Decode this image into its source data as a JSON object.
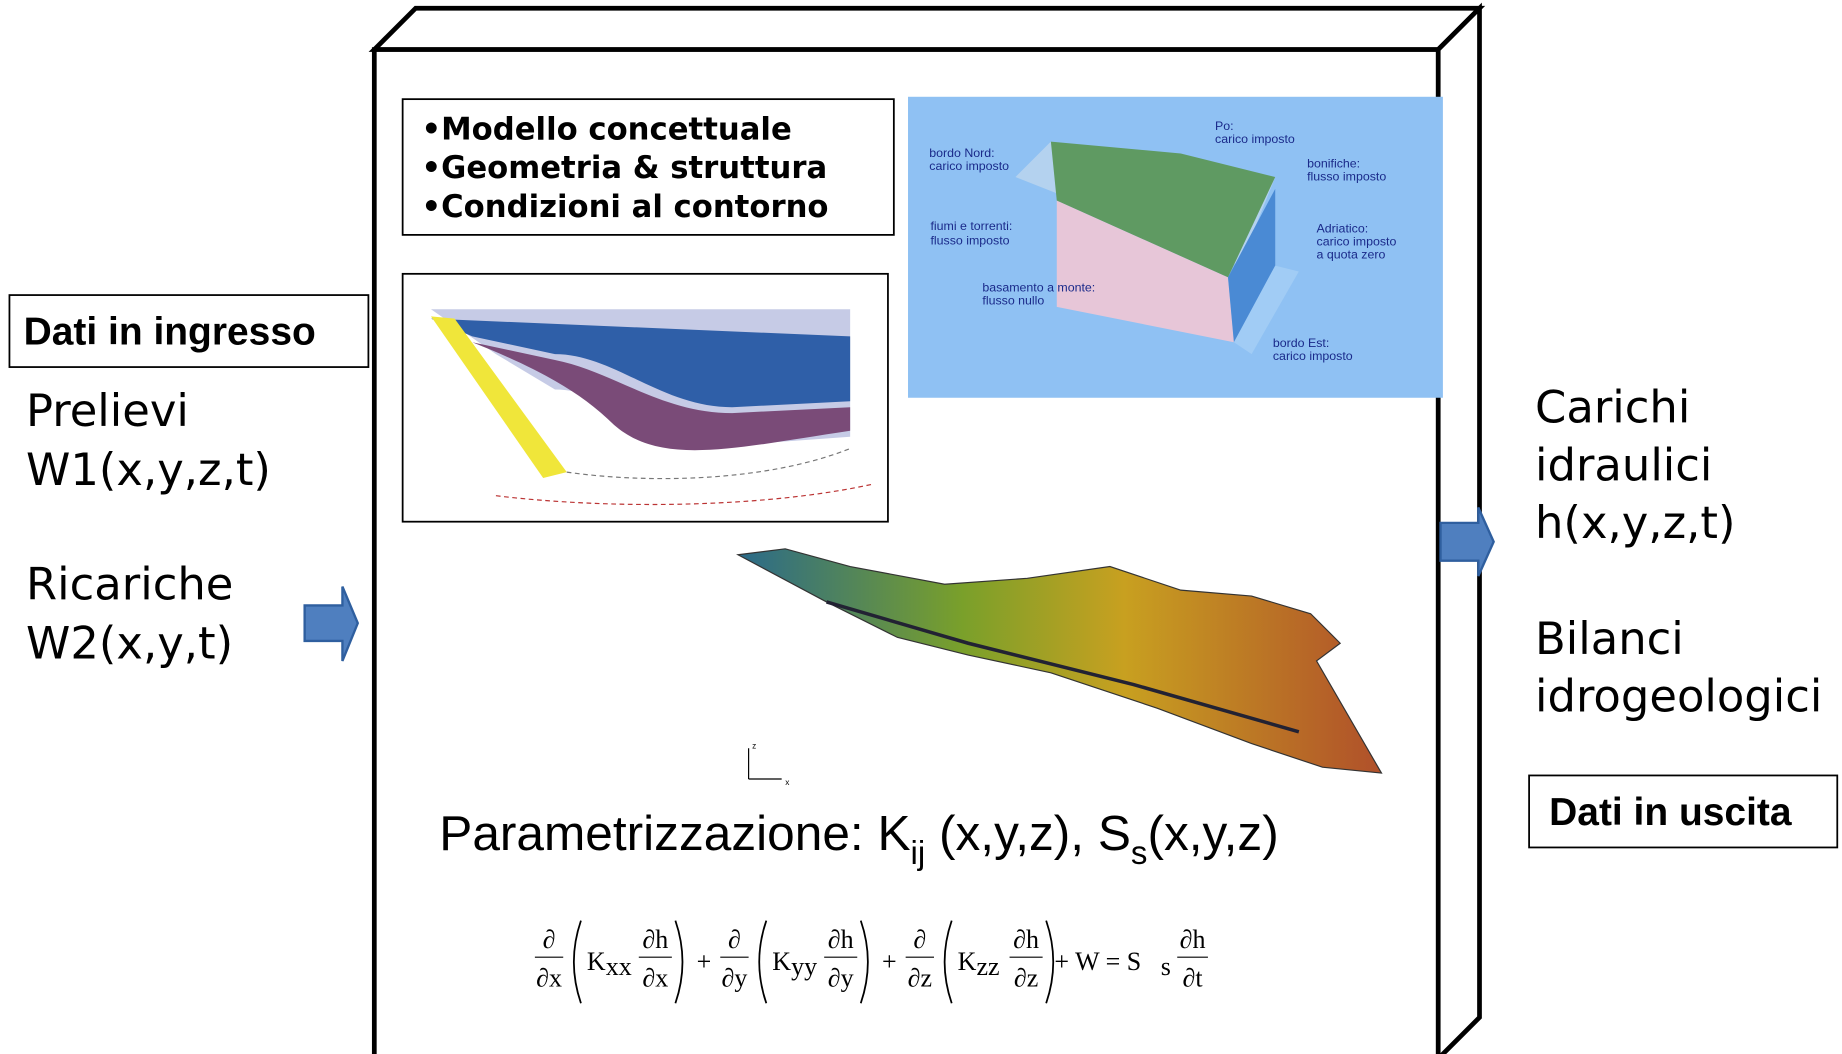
{
  "input": {
    "title": "Dati in ingresso",
    "items": [
      {
        "name": "Prelievi",
        "formula": "W1(x,y,z,t)"
      },
      {
        "name": "Ricariche",
        "formula": "W2(x,y,t)"
      }
    ]
  },
  "output": {
    "title": "Dati in uscita",
    "items": [
      {
        "lines": [
          "Carichi",
          "idraulici",
          "h(x,y,z,t)"
        ]
      },
      {
        "lines": [
          "Bilanci",
          "idrogeologici"
        ]
      }
    ]
  },
  "model": {
    "bullets": [
      "•Modello concettuale",
      "•Geometria & struttura",
      "•Condizioni al contorno"
    ],
    "block_labels": [
      {
        "lines": [
          "Po:",
          "carico imposto"
        ]
      },
      {
        "lines": [
          "bordo Nord:",
          "carico imposto"
        ]
      },
      {
        "lines": [
          "bonifiche:",
          "flusso imposto"
        ]
      },
      {
        "lines": [
          "fiumi e torrenti:",
          "flusso imposto"
        ]
      },
      {
        "lines": [
          "Adriatico:",
          "carico imposto",
          "a quota zero"
        ]
      },
      {
        "lines": [
          "basamento a monte:",
          "flusso nullo"
        ]
      },
      {
        "lines": [
          "bordo Est:",
          "carico imposto"
        ]
      }
    ],
    "axes": {
      "x": "x",
      "z": "z"
    },
    "parametrization": {
      "text": "Parametrizzazione: K",
      "k_sub": "ij",
      "middle": " (x,y,z), S",
      "s_sub": "s",
      "end": "(x,y,z)"
    },
    "equation": {
      "terms": [
        {
          "op_num": "∂",
          "op_den": "∂x",
          "coef": "K",
          "sub": "xx",
          "num": "∂h",
          "den": "∂x"
        },
        {
          "op_num": "∂",
          "op_den": "∂y",
          "coef": "K",
          "sub": "yy",
          "num": "∂h",
          "den": "∂y"
        },
        {
          "op_num": "∂",
          "op_den": "∂z",
          "coef": "K",
          "sub": "zz",
          "num": "∂h",
          "den": "∂z"
        }
      ],
      "plus": "+",
      "rhs": "+ W = S",
      "rhs_sub": "s",
      "rhs_num": "∂h",
      "rhs_den": "∂t"
    }
  }
}
